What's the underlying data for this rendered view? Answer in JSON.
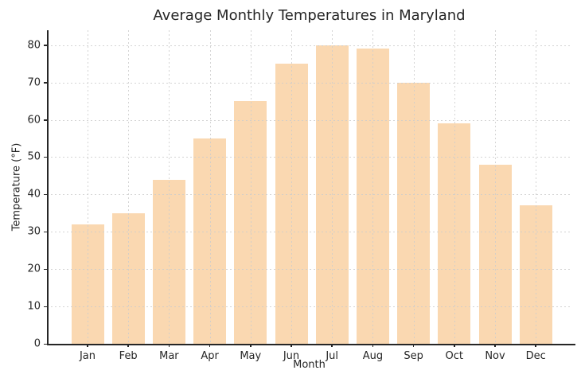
{
  "chart_data": {
    "type": "bar",
    "title": "Average Monthly Temperatures in Maryland",
    "xlabel": "Month",
    "ylabel": "Temperature (°F)",
    "categories": [
      "Jan",
      "Feb",
      "Mar",
      "Apr",
      "May",
      "Jun",
      "Jul",
      "Aug",
      "Sep",
      "Oct",
      "Nov",
      "Dec"
    ],
    "values": [
      32,
      35,
      44,
      55,
      65,
      75,
      80,
      79,
      70,
      59,
      48,
      37
    ],
    "yticks": [
      0,
      10,
      20,
      30,
      40,
      50,
      60,
      70,
      80
    ],
    "ylim": [
      0,
      84
    ],
    "grid": true,
    "legend": false,
    "bar_color": "#FAD8B1",
    "grid_color": "#CCCCCC",
    "axis_color": "#262626",
    "text_color": "#262626",
    "background_color": "#FFFFFF"
  }
}
